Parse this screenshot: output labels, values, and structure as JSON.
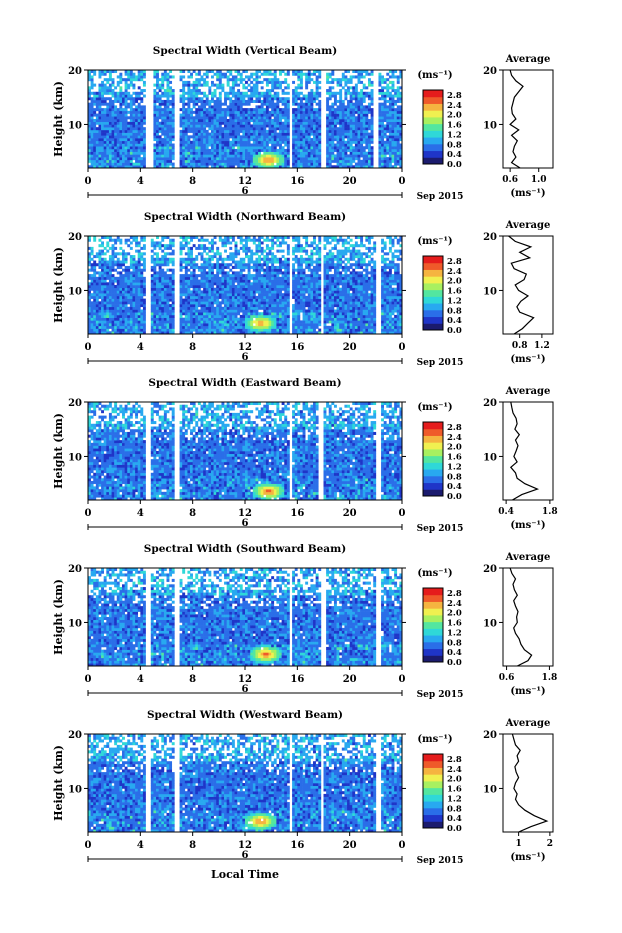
{
  "figure": {
    "date_label": "Sep 2015",
    "day_label": "6",
    "xlabel": "Local Time",
    "colorbar_unit": "(ms⁻¹)",
    "colorbar_ticks": [
      "0.0",
      "0.4",
      "0.8",
      "1.2",
      "1.6",
      "2.0",
      "2.4",
      "2.8"
    ],
    "avg_title": "Average",
    "avg_xlabel": "(ms⁻¹)",
    "ylabel": "Height (km)",
    "colorscale": [
      "#1b1b6e",
      "#1f35c8",
      "#2a6ee8",
      "#28a9f0",
      "#2fd8d8",
      "#53e6a0",
      "#a8f060",
      "#f0f050",
      "#f5b440",
      "#ef5a2a",
      "#e51c1c"
    ]
  },
  "chart_data": [
    {
      "type": "heatmap",
      "title": "Spectral Width (Vertical Beam)",
      "xticks": [
        "0",
        "4",
        "8",
        "12",
        "16",
        "20",
        "0"
      ],
      "yticks": [
        "20",
        "10"
      ],
      "xlim": [
        0,
        24
      ],
      "ylim": [
        2,
        20
      ],
      "clim": [
        0.0,
        3.0
      ],
      "gaps": [
        [
          4.5,
          4.9
        ],
        [
          6.7,
          7.0
        ],
        [
          15.4,
          15.6
        ],
        [
          17.8,
          18.1
        ],
        [
          21.8,
          22.2
        ]
      ],
      "hotspot": {
        "t": 13.8,
        "h": 3.5,
        "value": 2.8
      },
      "average": {
        "xticks": [
          "0.6",
          "1.0"
        ],
        "xlim": [
          0.5,
          1.2
        ],
        "h": [
          2,
          3,
          4,
          5,
          6,
          7,
          8,
          9,
          10,
          11,
          12,
          13,
          14,
          15,
          16,
          17,
          18,
          19,
          20
        ],
        "v": [
          0.74,
          0.62,
          0.68,
          0.64,
          0.66,
          0.7,
          0.62,
          0.72,
          0.6,
          0.68,
          0.63,
          0.62,
          0.64,
          0.66,
          0.72,
          0.78,
          0.68,
          0.62,
          0.6
        ]
      }
    },
    {
      "type": "heatmap",
      "title": "Spectral Width (Northward Beam)",
      "xticks": [
        "0",
        "4",
        "8",
        "12",
        "16",
        "20",
        "0"
      ],
      "yticks": [
        "20",
        "10"
      ],
      "xlim": [
        0,
        24
      ],
      "ylim": [
        2,
        20
      ],
      "clim": [
        0.0,
        3.0
      ],
      "gaps": [
        [
          4.4,
          4.8
        ],
        [
          6.7,
          7.0
        ],
        [
          15.3,
          15.6
        ],
        [
          17.8,
          18.0
        ],
        [
          22.0,
          22.3
        ]
      ],
      "hotspot": {
        "t": 13.2,
        "h": 4.0,
        "value": 2.6
      },
      "average": {
        "xticks": [
          "0.8",
          "1.2"
        ],
        "xlim": [
          0.5,
          1.4
        ],
        "h": [
          2,
          3,
          4,
          5,
          6,
          7,
          8,
          9,
          10,
          11,
          12,
          13,
          14,
          15,
          16,
          17,
          18,
          19,
          20
        ],
        "v": [
          0.7,
          0.85,
          0.95,
          1.05,
          0.8,
          0.75,
          0.82,
          0.95,
          0.78,
          0.72,
          0.88,
          0.92,
          0.7,
          0.65,
          0.98,
          0.8,
          1.0,
          0.72,
          0.6
        ]
      }
    },
    {
      "type": "heatmap",
      "title": "Spectral Width (Eastward Beam)",
      "xticks": [
        "0",
        "4",
        "8",
        "12",
        "16",
        "20",
        "0"
      ],
      "yticks": [
        "20",
        "10"
      ],
      "xlim": [
        0,
        24
      ],
      "ylim": [
        2,
        20
      ],
      "clim": [
        0.0,
        3.0
      ],
      "gaps": [
        [
          4.5,
          4.8
        ],
        [
          6.7,
          7.0
        ],
        [
          15.4,
          15.6
        ],
        [
          17.6,
          18.0
        ],
        [
          22.0,
          22.3
        ]
      ],
      "hotspot": {
        "t": 13.8,
        "h": 3.6,
        "value": 2.8
      },
      "average": {
        "xticks": [
          "0.4",
          "1.8"
        ],
        "xlim": [
          0.3,
          1.9
        ],
        "h": [
          2,
          3,
          4,
          5,
          6,
          7,
          8,
          9,
          10,
          11,
          12,
          13,
          14,
          15,
          16,
          17,
          18,
          19,
          20
        ],
        "v": [
          0.6,
          0.9,
          1.4,
          1.0,
          0.75,
          0.7,
          0.55,
          0.75,
          0.65,
          0.72,
          0.78,
          0.7,
          0.82,
          0.68,
          0.75,
          0.72,
          0.62,
          0.58,
          0.55
        ]
      }
    },
    {
      "type": "heatmap",
      "title": "Spectral Width (Southward Beam)",
      "xticks": [
        "0",
        "4",
        "8",
        "12",
        "16",
        "20",
        "0"
      ],
      "yticks": [
        "20",
        "10"
      ],
      "xlim": [
        0,
        24
      ],
      "ylim": [
        2,
        20
      ],
      "clim": [
        0.0,
        3.0
      ],
      "gaps": [
        [
          4.5,
          4.8
        ],
        [
          6.7,
          7.0
        ],
        [
          15.4,
          15.6
        ],
        [
          17.8,
          18.1
        ],
        [
          22.0,
          22.3
        ]
      ],
      "hotspot": {
        "t": 13.6,
        "h": 4.2,
        "value": 2.8
      },
      "average": {
        "xticks": [
          "0.6",
          "1.8"
        ],
        "xlim": [
          0.5,
          1.9
        ],
        "h": [
          2,
          3,
          4,
          5,
          6,
          7,
          8,
          9,
          10,
          11,
          12,
          13,
          14,
          15,
          16,
          17,
          18,
          19,
          20
        ],
        "v": [
          0.9,
          1.2,
          1.3,
          1.1,
          1.0,
          0.95,
          0.85,
          0.8,
          0.9,
          0.88,
          0.92,
          0.85,
          0.8,
          0.9,
          0.82,
          0.78,
          0.85,
          0.75,
          0.7
        ]
      }
    },
    {
      "type": "heatmap",
      "title": "Spectral Width (Westward Beam)",
      "xticks": [
        "0",
        "4",
        "8",
        "12",
        "16",
        "20",
        "0"
      ],
      "yticks": [
        "20",
        "10"
      ],
      "xlim": [
        0,
        24
      ],
      "ylim": [
        2,
        20
      ],
      "clim": [
        0.0,
        3.0
      ],
      "gaps": [
        [
          4.5,
          4.8
        ],
        [
          6.7,
          7.0
        ],
        [
          15.4,
          15.6
        ],
        [
          17.8,
          18.0
        ],
        [
          22.0,
          22.3
        ]
      ],
      "hotspot": {
        "t": 13.2,
        "h": 4.0,
        "value": 2.8
      },
      "average": {
        "xticks": [
          "1",
          "2"
        ],
        "xlim": [
          0.5,
          2.1
        ],
        "h": [
          2,
          3,
          4,
          5,
          6,
          7,
          8,
          9,
          10,
          11,
          12,
          13,
          14,
          15,
          16,
          17,
          18,
          19,
          20
        ],
        "v": [
          1.0,
          1.4,
          1.9,
          1.5,
          1.2,
          1.0,
          0.9,
          0.95,
          0.85,
          0.9,
          1.0,
          0.92,
          0.88,
          1.0,
          0.95,
          1.05,
          0.9,
          0.85,
          0.8
        ]
      }
    }
  ]
}
